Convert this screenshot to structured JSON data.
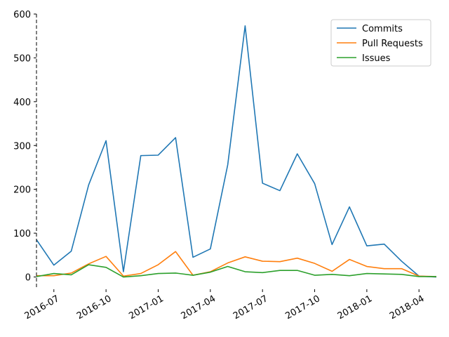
{
  "chart_data": {
    "type": "line",
    "title": "",
    "xlabel": "",
    "ylabel": "",
    "x": [
      "2016-06",
      "2016-07",
      "2016-08",
      "2016-09",
      "2016-10",
      "2016-11",
      "2016-12",
      "2017-01",
      "2017-02",
      "2017-03",
      "2017-04",
      "2017-05",
      "2017-06",
      "2017-07",
      "2017-08",
      "2017-09",
      "2017-10",
      "2017-11",
      "2017-12",
      "2018-01",
      "2018-02",
      "2018-03",
      "2018-04",
      "2018-05"
    ],
    "series": [
      {
        "name": "Commits",
        "color": "#1f77b4",
        "values": [
          85,
          27,
          59,
          210,
          311,
          12,
          277,
          278,
          318,
          45,
          64,
          256,
          573,
          214,
          197,
          281,
          213,
          74,
          160,
          71,
          75,
          36,
          2,
          0
        ]
      },
      {
        "name": "Pull Requests",
        "color": "#ff7f0e",
        "values": [
          3,
          3,
          9,
          30,
          47,
          2,
          8,
          28,
          58,
          4,
          12,
          32,
          46,
          36,
          35,
          43,
          31,
          13,
          40,
          24,
          19,
          19,
          2,
          1
        ]
      },
      {
        "name": "Issues",
        "color": "#2ca02c",
        "values": [
          1,
          8,
          5,
          28,
          22,
          0,
          3,
          8,
          9,
          4,
          11,
          24,
          12,
          10,
          15,
          15,
          4,
          6,
          3,
          8,
          7,
          6,
          1,
          1
        ]
      }
    ],
    "xticks": [
      "2016-07",
      "2016-10",
      "2017-01",
      "2017-04",
      "2017-07",
      "2017-10",
      "2018-01",
      "2018-04"
    ],
    "yticks": [
      0,
      100,
      200,
      300,
      400,
      500,
      600
    ],
    "ylim": [
      -28,
      600
    ],
    "xlim": [
      "2016-06",
      "2018-05"
    ],
    "grid": false,
    "legend": "top-right"
  }
}
